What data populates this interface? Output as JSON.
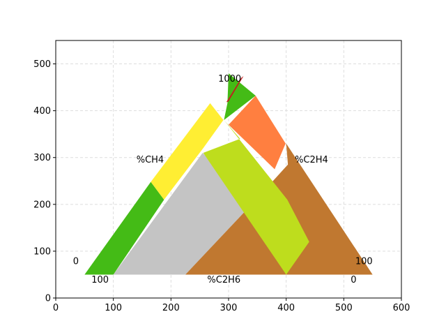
{
  "chart_data": {
    "type": "other",
    "chart_kind": "ternary region map (Duval triangle)",
    "title": "",
    "xlabel": "",
    "ylabel": "",
    "xlim": [
      0,
      600
    ],
    "ylim": [
      0,
      550
    ],
    "x_ticks": [
      0,
      100,
      200,
      300,
      400,
      500,
      600
    ],
    "y_ticks": [
      0,
      100,
      200,
      300,
      400,
      500
    ],
    "x_tick_labels": [
      "0",
      "100",
      "200",
      "300",
      "400",
      "500",
      "600"
    ],
    "y_tick_labels": [
      "0",
      "100",
      "200",
      "300",
      "400",
      "500"
    ],
    "grid": true,
    "grid_style": "dashed light gray",
    "regions": [
      {
        "id": "gray",
        "color": "#c4c4c4",
        "points": [
          [
            100,
            50
          ],
          [
            255,
            310
          ],
          [
            340,
            200
          ],
          [
            225,
            50
          ]
        ]
      },
      {
        "id": "brown",
        "color": "#c07830",
        "points": [
          [
            225,
            50
          ],
          [
            340,
            200
          ],
          [
            403,
            285
          ],
          [
            400,
            330
          ],
          [
            550,
            50
          ]
        ]
      },
      {
        "id": "green-left",
        "color": "#44bb16",
        "points": [
          [
            50,
            50
          ],
          [
            165,
            248
          ],
          [
            188,
            210
          ],
          [
            100,
            50
          ]
        ]
      },
      {
        "id": "yellow",
        "color": "#ffee33",
        "points": [
          [
            165,
            248
          ],
          [
            268,
            416
          ],
          [
            291,
            380
          ],
          [
            256,
            320
          ],
          [
            188,
            210
          ]
        ]
      },
      {
        "id": "green-top",
        "color": "#44bb16",
        "points": [
          [
            300,
            480
          ],
          [
            298,
            416
          ],
          [
            292,
            380
          ],
          [
            347,
            432
          ]
        ]
      },
      {
        "id": "orange",
        "color": "#ff7f40",
        "points": [
          [
            347,
            432
          ],
          [
            300,
            370
          ],
          [
            380,
            275
          ],
          [
            399,
            330
          ]
        ]
      },
      {
        "id": "lime",
        "color": "#bedd1d",
        "points": [
          [
            292,
            380
          ],
          [
            320,
            340
          ],
          [
            256,
            310
          ],
          [
            400,
            50
          ],
          [
            440,
            120
          ],
          [
            402,
            210
          ]
        ]
      },
      {
        "id": "red",
        "color": "#c02020",
        "points": [
          [
            296,
            418
          ],
          [
            322,
            470
          ],
          [
            326,
            474
          ],
          [
            300,
            420
          ]
        ]
      }
    ],
    "annotations": [
      {
        "text": "100",
        "x": 282,
        "y": 462
      },
      {
        "text": "0",
        "x": 312,
        "y": 462
      },
      {
        "text": "%CH4",
        "x": 140,
        "y": 289
      },
      {
        "text": "%C2H4",
        "x": 415,
        "y": 289
      },
      {
        "text": "0",
        "x": 30,
        "y": 72
      },
      {
        "text": "100",
        "x": 62,
        "y": 33
      },
      {
        "text": "%C2H6",
        "x": 263,
        "y": 33
      },
      {
        "text": "100",
        "x": 520,
        "y": 72
      },
      {
        "text": "0",
        "x": 512,
        "y": 33
      }
    ]
  }
}
